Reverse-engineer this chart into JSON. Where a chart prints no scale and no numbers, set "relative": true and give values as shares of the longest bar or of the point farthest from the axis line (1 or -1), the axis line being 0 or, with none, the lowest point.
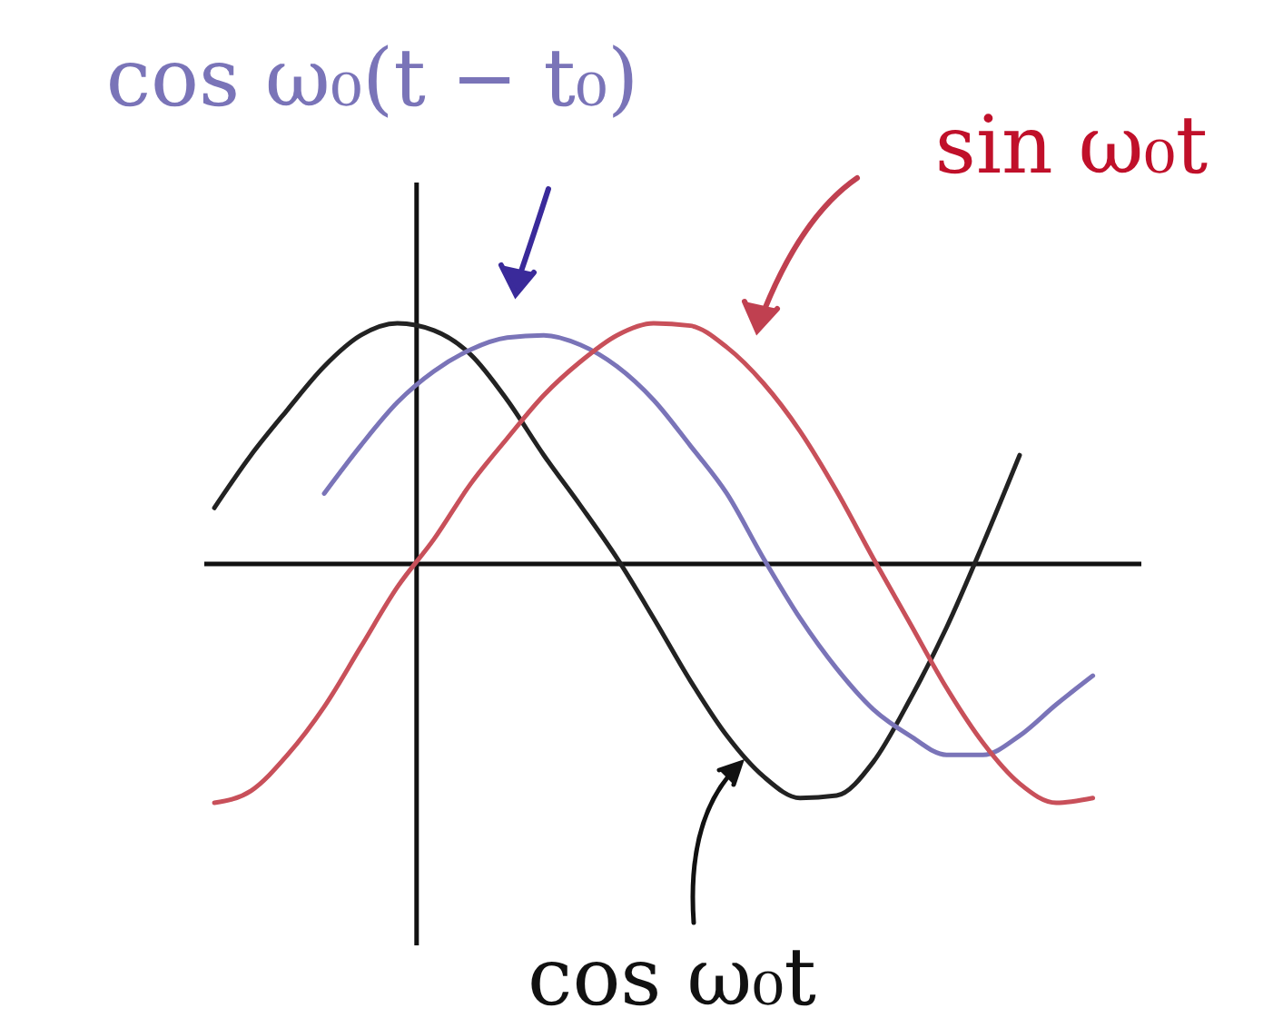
{
  "chart_data": {
    "type": "line",
    "relative": true,
    "categories": [
      null,
      null,
      null,
      null,
      null,
      null,
      null,
      null,
      null,
      null,
      null,
      null,
      null,
      null,
      null,
      null,
      null,
      null,
      null,
      null,
      null,
      null,
      null,
      null,
      null,
      null
    ],
    "series": [
      {
        "name": "cos ω₀t",
        "color": "#222222",
        "values": [
          0.23,
          0.45,
          0.64,
          0.82,
          0.95,
          1.0,
          0.97,
          0.87,
          0.68,
          0.45,
          0.24,
          0.02,
          -0.23,
          -0.49,
          -0.72,
          -0.89,
          -0.98,
          -0.97,
          -0.83,
          -0.57,
          -0.27,
          0.08,
          0.45,
          null,
          null,
          null
        ]
      },
      {
        "name": "cos ω₀(t − t₀)",
        "color": "#7a74b8",
        "values": [
          null,
          null,
          null,
          0.29,
          0.49,
          0.67,
          0.8,
          0.89,
          0.94,
          0.95,
          0.91,
          0.82,
          0.68,
          0.49,
          0.29,
          0.02,
          -0.23,
          -0.44,
          -0.61,
          -0.72,
          -0.8,
          -0.8,
          -0.72,
          -0.59,
          -0.47,
          null
        ]
      },
      {
        "name": "sin ω₀t",
        "color": "#c8505a",
        "values": [
          -1.0,
          -0.95,
          -0.8,
          -0.6,
          -0.35,
          -0.1,
          0.1,
          0.33,
          0.52,
          0.7,
          0.84,
          0.95,
          1.0,
          0.99,
          0.9,
          0.75,
          0.55,
          0.3,
          0.02,
          -0.25,
          -0.52,
          -0.75,
          -0.92,
          -1.0,
          -0.98,
          null
        ]
      }
    ]
  }
}
